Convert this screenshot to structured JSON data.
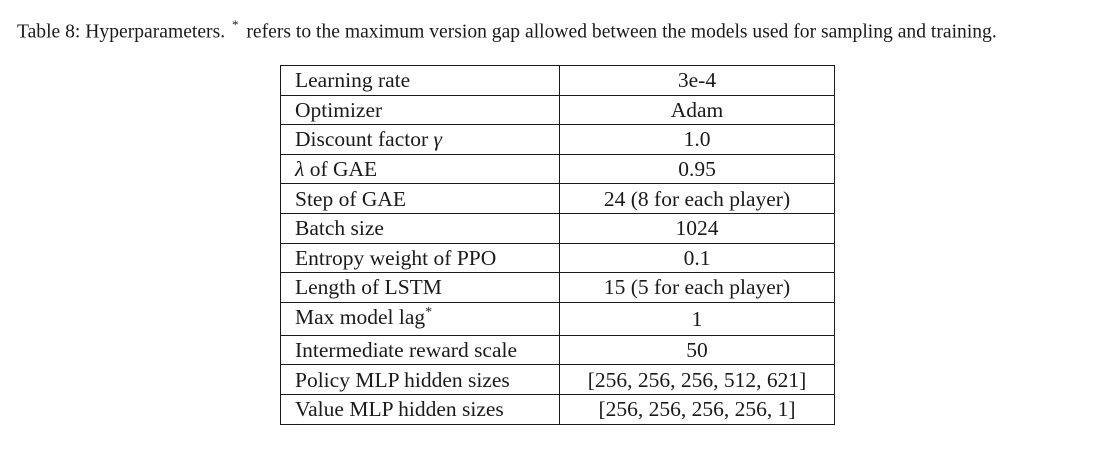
{
  "caption": {
    "label": "Table 8:",
    "title": "Hyperparameters.",
    "marker": "*",
    "text": "refers to the maximum version gap allowed between the models used for sampling and training."
  },
  "table": {
    "rows": [
      {
        "name": "Learning rate",
        "value": "3e-4"
      },
      {
        "name": "Optimizer",
        "value": "Adam"
      },
      {
        "name": "Discount factor",
        "symbol": "γ",
        "value": "1.0"
      },
      {
        "name_symbol": "λ",
        "name": "of GAE",
        "value": "0.95"
      },
      {
        "name": "Step of GAE",
        "value": "24 (8 for each player)"
      },
      {
        "name": "Batch size",
        "value": "1024"
      },
      {
        "name": "Entropy weight of PPO",
        "value": "0.1"
      },
      {
        "name": "Length of LSTM",
        "value": "15 (5 for each player)"
      },
      {
        "name": "Max model lag",
        "marker": "*",
        "value": "1"
      },
      {
        "name": "Intermediate reward scale",
        "value": "50"
      },
      {
        "name": "Policy MLP hidden sizes",
        "value": "[256, 256, 256, 512, 621]"
      },
      {
        "name": "Value MLP hidden sizes",
        "value": "[256, 256, 256, 256, 1]"
      }
    ]
  }
}
